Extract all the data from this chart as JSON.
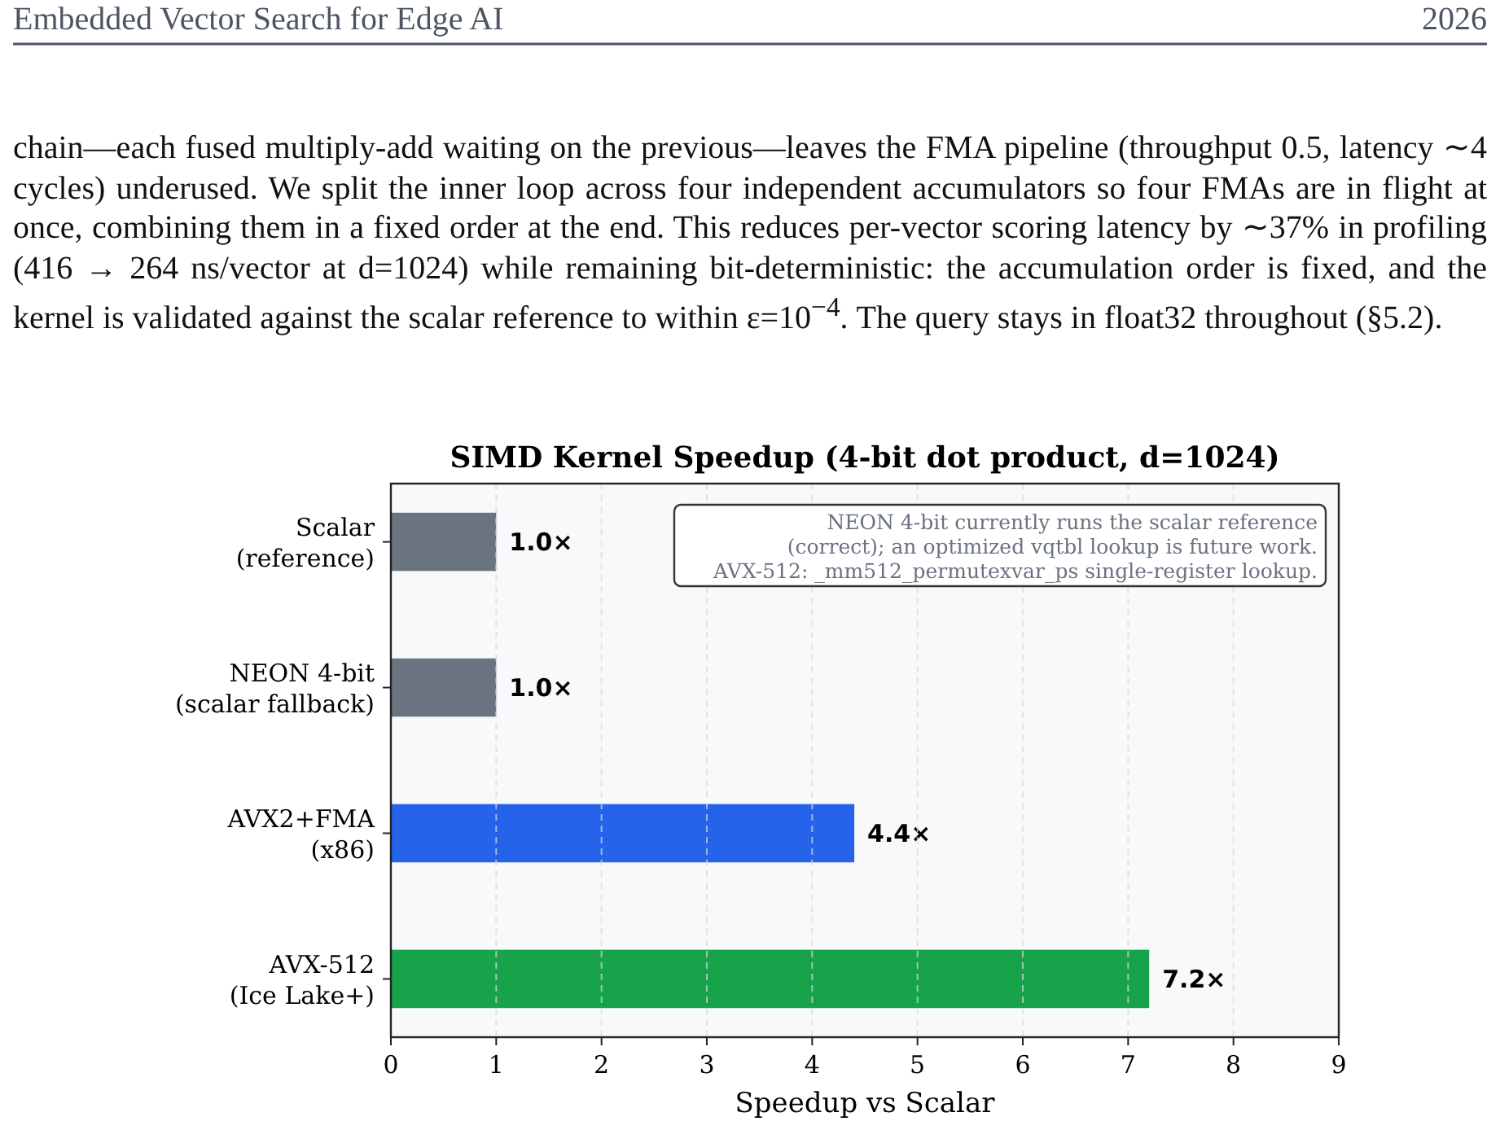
{
  "chart_data": {
    "type": "bar",
    "orientation": "horizontal",
    "title": "SIMD Kernel Speedup (4-bit dot product, d=1024)",
    "xlabel": "Speedup vs Scalar",
    "categories": [
      "Scalar\n(reference)",
      "NEON 4-bit\n(scalar fallback)",
      "AVX2+FMA\n(x86)",
      "AVX-512\n(Ice Lake+)"
    ],
    "values": [
      1.0,
      1.0,
      4.4,
      7.2
    ],
    "colors": [
      "#6b7280",
      "#6b7280",
      "#2563eb",
      "#16a34a"
    ],
    "value_labels": [
      "1.0×",
      "1.0×",
      "4.4×",
      "7.2×"
    ],
    "xlim": [
      0,
      9
    ],
    "xticks": [
      0,
      1,
      2,
      3,
      4,
      5,
      6,
      7,
      8,
      9
    ],
    "grid": "x",
    "annotations": [
      "Embedded Vector Search for Edge AI",
      "2026",
      "chain—each fused multiply-add waiting on the previous—leaves the FMA pipeline (throughput 0.5, latency ∼4 cycles) underused. We split the inner loop across four independent accumulators so four FMAs are in flight at once, combining them in a fixed order at the end. This reduces per-vector scoring latency by ∼37% in profiling (416 → 264 ns/vector at d=1024) while remaining bit-deterministic: the accumulation order is fixed, and the kernel is validated against the scalar reference to within ε=10$^{−4}$. The query stays in float32 throughout (§5.2).",
      "NEON 4-bit currently runs the scalar reference\n(correct); an optimized vqtbl lookup is future work.\nAVX-512: _mm512_permutexvar_ps single-register lookup."
    ]
  }
}
